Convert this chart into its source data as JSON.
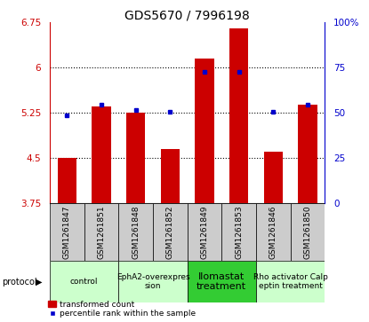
{
  "title": "GDS5670 / 7996198",
  "samples": [
    "GSM1261847",
    "GSM1261851",
    "GSM1261848",
    "GSM1261852",
    "GSM1261849",
    "GSM1261853",
    "GSM1261846",
    "GSM1261850"
  ],
  "bar_values": [
    4.5,
    5.35,
    5.25,
    4.65,
    6.15,
    6.65,
    4.6,
    5.38
  ],
  "bar_base": 3.75,
  "dot_values": [
    5.2,
    5.38,
    5.3,
    5.27,
    5.93,
    5.93,
    5.26,
    5.38
  ],
  "ylim_left": [
    3.75,
    6.75
  ],
  "ylim_right": [
    0,
    100
  ],
  "yticks_left": [
    3.75,
    4.5,
    5.25,
    6.0,
    6.75
  ],
  "yticks_left_labels": [
    "3.75",
    "4.5",
    "5.25",
    "6",
    "6.75"
  ],
  "yticks_right": [
    0,
    25,
    50,
    75,
    100
  ],
  "yticks_right_labels": [
    "0",
    "25",
    "50",
    "75",
    "100%"
  ],
  "hlines": [
    6.0,
    5.25,
    4.5
  ],
  "bar_color": "#cc0000",
  "dot_color": "#0000cc",
  "bar_width": 0.55,
  "protocols": [
    {
      "label": "control",
      "indices": [
        0,
        1
      ],
      "color": "#ccffcc"
    },
    {
      "label": "EphA2-overexpres\nsion",
      "indices": [
        2,
        3
      ],
      "color": "#ccffcc"
    },
    {
      "label": "Ilomastat\ntreatment",
      "indices": [
        4,
        5
      ],
      "color": "#33cc33"
    },
    {
      "label": "Rho activator Calp\neptin treatment",
      "indices": [
        6,
        7
      ],
      "color": "#ccffcc"
    }
  ],
  "legend_bar_label": "transformed count",
  "legend_dot_label": "percentile rank within the sample",
  "protocol_label": "protocol",
  "left_axis_color": "#cc0000",
  "right_axis_color": "#0000cc",
  "sample_area_color": "#cccccc",
  "title_fontsize": 10,
  "tick_fontsize": 7.5,
  "sample_fontsize": 6.5,
  "proto_fontsize_small": 6.5,
  "proto_fontsize_large": 8
}
